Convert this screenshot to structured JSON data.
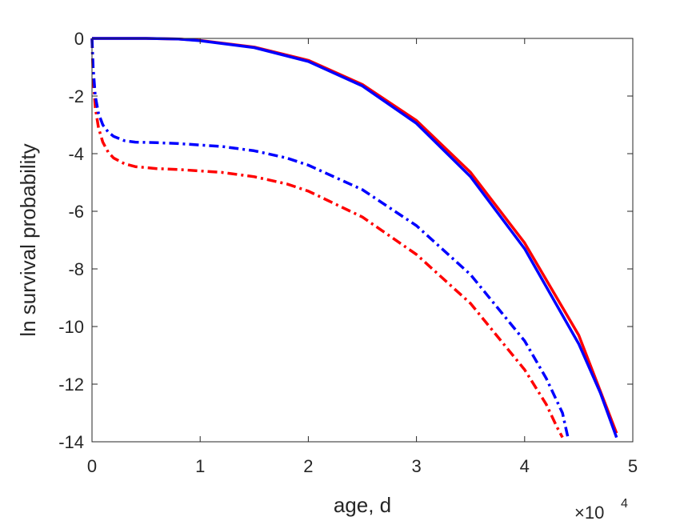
{
  "chart_data": {
    "type": "line",
    "xlabel": "age, d",
    "ylabel": "ln survival probability",
    "x_multiplier": "×10",
    "x_multiplier_exponent": "4",
    "xlim": [
      0,
      50000
    ],
    "ylim": [
      -14,
      0
    ],
    "xticks": [
      0,
      10000,
      20000,
      30000,
      40000,
      50000
    ],
    "xtick_labels": [
      "0",
      "1",
      "2",
      "3",
      "4",
      "5"
    ],
    "yticks": [
      0,
      -2,
      -4,
      -6,
      -8,
      -10,
      -12,
      -14
    ],
    "ytick_labels": [
      "0",
      "-2",
      "-4",
      "-6",
      "-8",
      "-10",
      "-12",
      "-14"
    ],
    "grid": false,
    "box": true,
    "series": [
      {
        "color": "#ff0000",
        "style": "solid",
        "x": [
          0,
          2000,
          5000,
          8000,
          10000,
          15000,
          20000,
          25000,
          30000,
          35000,
          40000,
          45000,
          48500
        ],
        "y": [
          0,
          0,
          0,
          -0.02,
          -0.07,
          -0.3,
          -0.76,
          -1.6,
          -2.85,
          -4.65,
          -7.1,
          -10.3,
          -13.7
        ]
      },
      {
        "color": "#0000ff",
        "style": "solid",
        "x": [
          0,
          2000,
          5000,
          8000,
          10000,
          15000,
          20000,
          25000,
          30000,
          35000,
          40000,
          45000,
          47000,
          48500
        ],
        "y": [
          0,
          0,
          0,
          -0.02,
          -0.08,
          -0.32,
          -0.8,
          -1.65,
          -2.95,
          -4.8,
          -7.3,
          -10.6,
          -12.3,
          -13.85
        ]
      },
      {
        "color": "#ff0000",
        "style": "dashdot",
        "x": [
          0,
          100,
          300,
          600,
          1000,
          1500,
          2000,
          3000,
          4000,
          6000,
          8000,
          10000,
          12000,
          15000,
          18000,
          20000,
          25000,
          30000,
          35000,
          40000,
          42000,
          43000,
          43500
        ],
        "y": [
          0,
          -1.3,
          -2.4,
          -3.1,
          -3.6,
          -3.95,
          -4.15,
          -4.35,
          -4.45,
          -4.52,
          -4.55,
          -4.6,
          -4.65,
          -4.8,
          -5.05,
          -5.3,
          -6.2,
          -7.5,
          -9.2,
          -11.5,
          -12.7,
          -13.5,
          -13.85
        ]
      },
      {
        "color": "#0000ff",
        "style": "dashdot",
        "x": [
          0,
          100,
          300,
          600,
          1000,
          1500,
          2000,
          3000,
          4000,
          6000,
          8000,
          10000,
          12000,
          15000,
          18000,
          20000,
          25000,
          30000,
          35000,
          40000,
          42000,
          43500,
          44000
        ],
        "y": [
          0,
          -1.0,
          -2.0,
          -2.6,
          -3.0,
          -3.25,
          -3.4,
          -3.55,
          -3.6,
          -3.62,
          -3.65,
          -3.7,
          -3.75,
          -3.9,
          -4.15,
          -4.4,
          -5.25,
          -6.5,
          -8.2,
          -10.5,
          -11.8,
          -13.0,
          -13.85
        ]
      }
    ]
  }
}
